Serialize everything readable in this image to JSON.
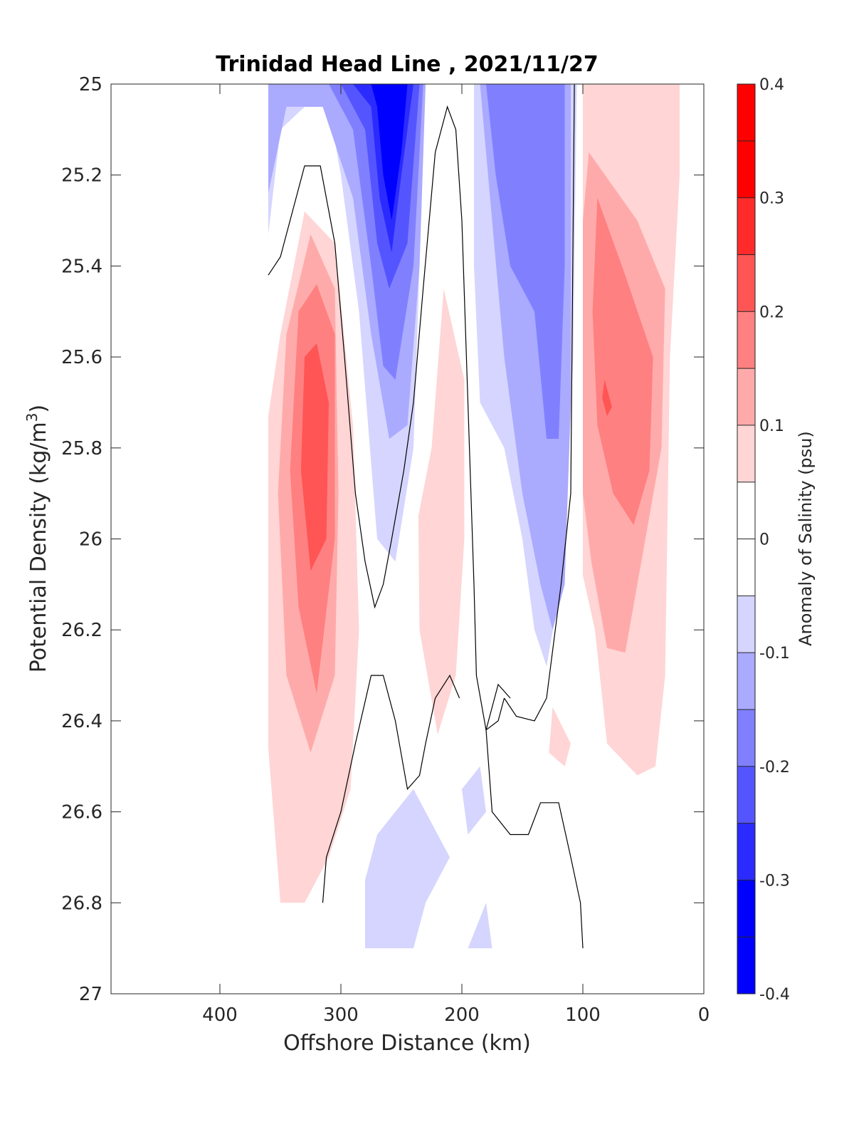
{
  "chart_data": {
    "type": "contour",
    "title": "Trinidad Head Line , 2021/11/27",
    "xlabel": "Offshore Distance (km)",
    "ylabel": "Potential Density (kg/m",
    "ylabel_sup": "3",
    "ylabel_end": ")",
    "xlim": [
      490,
      0
    ],
    "x_reversed": true,
    "ylim": [
      25,
      27
    ],
    "y_reversed": true,
    "x_ticks": [
      400,
      300,
      200,
      100,
      0
    ],
    "x_tick_labels": [
      "400",
      "300",
      "200",
      "100",
      "0"
    ],
    "y_ticks": [
      25,
      25.2,
      25.4,
      25.6,
      25.8,
      26,
      26.2,
      26.4,
      26.6,
      26.8,
      27
    ],
    "y_tick_labels": [
      "25",
      "25.2",
      "25.4",
      "25.6",
      "25.8",
      "26",
      "26.2",
      "26.4",
      "26.6",
      "26.8",
      "27"
    ],
    "colorbar": {
      "label": "Anomaly of Salinity (psu)",
      "range": [
        -0.4,
        0.4
      ],
      "levels": [
        -0.4,
        -0.35,
        -0.3,
        -0.25,
        -0.2,
        -0.15,
        -0.1,
        -0.05,
        0.05,
        0.1,
        0.15,
        0.2,
        0.25,
        0.3,
        0.35,
        0.4
      ],
      "tick_values": [
        -0.4,
        -0.3,
        -0.2,
        -0.1,
        0,
        0.1,
        0.2,
        0.3,
        0.4
      ],
      "tick_labels": [
        "-0.4",
        "-0.3",
        "-0.2",
        "-0.1",
        "0",
        "0.1",
        "0.2",
        "0.3",
        "0.4"
      ],
      "colors": [
        "#0000ff",
        "#2b2bff",
        "#5555ff",
        "#8080ff",
        "#aaaaff",
        "#d5d5ff",
        "#ffffff",
        "#ffd5d5",
        "#ffaaaa",
        "#ff8080",
        "#ff5555",
        "#ff2b2b",
        "#ff0000"
      ],
      "colors_note": "bands from -0.4 to 0.4; white band spans -0.05 to 0.05"
    },
    "regions": [
      {
        "band": 0.075,
        "points": [
          [
            360,
            25.73
          ],
          [
            350,
            25.55
          ],
          [
            330,
            25.28
          ],
          [
            305,
            25.35
          ],
          [
            290,
            25.75
          ],
          [
            285,
            26.2
          ],
          [
            292,
            26.55
          ],
          [
            310,
            26.7
          ],
          [
            330,
            26.8
          ],
          [
            350,
            26.8
          ],
          [
            360,
            26.46
          ]
        ]
      },
      {
        "band": 0.125,
        "points": [
          [
            345,
            25.55
          ],
          [
            325,
            25.33
          ],
          [
            305,
            25.45
          ],
          [
            302,
            25.9
          ],
          [
            305,
            26.3
          ],
          [
            325,
            26.47
          ],
          [
            345,
            26.3
          ],
          [
            352,
            25.9
          ]
        ]
      },
      {
        "band": 0.175,
        "points": [
          [
            335,
            25.5
          ],
          [
            320,
            25.44
          ],
          [
            305,
            25.55
          ],
          [
            305,
            26.0
          ],
          [
            320,
            26.34
          ],
          [
            335,
            26.15
          ],
          [
            342,
            25.85
          ]
        ]
      },
      {
        "band": 0.225,
        "points": [
          [
            330,
            25.6
          ],
          [
            320,
            25.57
          ],
          [
            310,
            25.7
          ],
          [
            312,
            26.0
          ],
          [
            325,
            26.07
          ],
          [
            333,
            25.85
          ]
        ]
      },
      {
        "band": 0.075,
        "points": [
          [
            100,
            25.0
          ],
          [
            20,
            25.0
          ],
          [
            20,
            25.2
          ],
          [
            28,
            25.6
          ],
          [
            32,
            26.3
          ],
          [
            40,
            26.5
          ],
          [
            55,
            26.52
          ],
          [
            80,
            26.45
          ],
          [
            90,
            26.2
          ],
          [
            100,
            26.08
          ]
        ]
      },
      {
        "band": 0.125,
        "points": [
          [
            95,
            25.15
          ],
          [
            55,
            25.3
          ],
          [
            32,
            25.45
          ],
          [
            35,
            25.8
          ],
          [
            55,
            26.1
          ],
          [
            65,
            26.25
          ],
          [
            80,
            26.24
          ],
          [
            93,
            26.05
          ],
          [
            100,
            25.9
          ],
          [
            100,
            25.3
          ]
        ]
      },
      {
        "band": 0.175,
        "points": [
          [
            88,
            25.25
          ],
          [
            65,
            25.42
          ],
          [
            42,
            25.6
          ],
          [
            45,
            25.85
          ],
          [
            58,
            25.97
          ],
          [
            75,
            25.9
          ],
          [
            88,
            25.75
          ],
          [
            92,
            25.5
          ]
        ]
      },
      {
        "band": 0.225,
        "points": [
          [
            82,
            25.65
          ],
          [
            76,
            25.71
          ],
          [
            80,
            25.73
          ],
          [
            84,
            25.69
          ]
        ]
      },
      {
        "band": 0.075,
        "points": [
          [
            215,
            25.45
          ],
          [
            198,
            25.65
          ],
          [
            198,
            26.0
          ],
          [
            205,
            26.3
          ],
          [
            220,
            26.43
          ],
          [
            235,
            26.2
          ],
          [
            236,
            25.95
          ],
          [
            225,
            25.8
          ]
        ]
      },
      {
        "band": 0.075,
        "points": [
          [
            125,
            26.37
          ],
          [
            110,
            26.45
          ],
          [
            115,
            26.5
          ],
          [
            128,
            26.47
          ]
        ]
      },
      {
        "band": -0.075,
        "points": [
          [
            360,
            25.0
          ],
          [
            230,
            25.0
          ],
          [
            240,
            25.8
          ],
          [
            255,
            26.05
          ],
          [
            270,
            26.0
          ],
          [
            285,
            25.5
          ],
          [
            300,
            25.2
          ],
          [
            310,
            25.05
          ],
          [
            330,
            25.05
          ],
          [
            350,
            25.1
          ],
          [
            360,
            25.33
          ]
        ]
      },
      {
        "band": -0.125,
        "points": [
          [
            360,
            25.0
          ],
          [
            230,
            25.0
          ],
          [
            235,
            25.4
          ],
          [
            245,
            25.75
          ],
          [
            260,
            25.78
          ],
          [
            275,
            25.55
          ],
          [
            290,
            25.25
          ],
          [
            315,
            25.05
          ],
          [
            345,
            25.05
          ],
          [
            360,
            25.24
          ]
        ]
      },
      {
        "band": -0.175,
        "points": [
          [
            355,
            25.0
          ],
          [
            232,
            25.0
          ],
          [
            240,
            25.4
          ],
          [
            255,
            25.65
          ],
          [
            265,
            25.62
          ],
          [
            275,
            25.4
          ],
          [
            290,
            25.1
          ],
          [
            310,
            25.0
          ]
        ]
      },
      {
        "band": -0.225,
        "points": [
          [
            300,
            25.0
          ],
          [
            235,
            25.0
          ],
          [
            245,
            25.35
          ],
          [
            260,
            25.45
          ],
          [
            270,
            25.35
          ],
          [
            280,
            25.1
          ]
        ]
      },
      {
        "band": -0.275,
        "points": [
          [
            290,
            25.0
          ],
          [
            240,
            25.0
          ],
          [
            250,
            25.2
          ],
          [
            258,
            25.37
          ],
          [
            268,
            25.25
          ],
          [
            275,
            25.05
          ]
        ]
      },
      {
        "band": -0.325,
        "points": [
          [
            275,
            25.0
          ],
          [
            245,
            25.0
          ],
          [
            250,
            25.15
          ],
          [
            258,
            25.3
          ],
          [
            265,
            25.2
          ],
          [
            270,
            25.05
          ]
        ]
      },
      {
        "band": -0.075,
        "points": [
          [
            190,
            25.0
          ],
          [
            105,
            25.0
          ],
          [
            108,
            25.6
          ],
          [
            115,
            26.05
          ],
          [
            130,
            26.28
          ],
          [
            140,
            26.2
          ],
          [
            150,
            26.0
          ],
          [
            165,
            25.8
          ],
          [
            185,
            25.7
          ],
          [
            190,
            25.4
          ]
        ]
      },
      {
        "band": -0.125,
        "points": [
          [
            185,
            25.0
          ],
          [
            110,
            25.0
          ],
          [
            110,
            25.7
          ],
          [
            115,
            26.1
          ],
          [
            125,
            26.2
          ],
          [
            135,
            26.1
          ],
          [
            150,
            25.9
          ],
          [
            165,
            25.6
          ],
          [
            175,
            25.3
          ]
        ]
      },
      {
        "band": -0.175,
        "points": [
          [
            180,
            25.0
          ],
          [
            115,
            25.0
          ],
          [
            115,
            25.4
          ],
          [
            120,
            25.78
          ],
          [
            130,
            25.78
          ],
          [
            140,
            25.5
          ],
          [
            160,
            25.4
          ],
          [
            172,
            25.2
          ]
        ]
      },
      {
        "band": -0.075,
        "points": [
          [
            270,
            26.65
          ],
          [
            240,
            26.55
          ],
          [
            210,
            26.7
          ],
          [
            230,
            26.8
          ],
          [
            240,
            26.9
          ],
          [
            280,
            26.9
          ],
          [
            280,
            26.75
          ]
        ]
      },
      {
        "band": -0.075,
        "points": [
          [
            200,
            26.55
          ],
          [
            185,
            26.5
          ],
          [
            180,
            26.6
          ],
          [
            195,
            26.65
          ]
        ]
      },
      {
        "band": -0.075,
        "points": [
          [
            180,
            26.8
          ],
          [
            195,
            26.9
          ],
          [
            175,
            26.9
          ]
        ]
      }
    ],
    "contour_lines": [
      {
        "level": 0,
        "points": [
          [
            360,
            25.42
          ],
          [
            350,
            25.38
          ],
          [
            330,
            25.18
          ],
          [
            317,
            25.18
          ],
          [
            305,
            25.35
          ],
          [
            297,
            25.6
          ],
          [
            288,
            25.9
          ],
          [
            280,
            26.05
          ],
          [
            272,
            26.15
          ],
          [
            265,
            26.1
          ],
          [
            258,
            26.0
          ],
          [
            248,
            25.85
          ],
          [
            240,
            25.7
          ],
          [
            232,
            25.45
          ],
          [
            222,
            25.15
          ],
          [
            212,
            25.05
          ],
          [
            205,
            25.1
          ],
          [
            200,
            25.3
          ],
          [
            195,
            25.7
          ],
          [
            190,
            26.1
          ],
          [
            188,
            26.3
          ],
          [
            180,
            26.42
          ],
          [
            170,
            26.4
          ],
          [
            165,
            26.35
          ]
        ]
      },
      {
        "level": 0,
        "points": [
          [
            165,
            26.35
          ],
          [
            155,
            26.39
          ],
          [
            140,
            26.4
          ],
          [
            130,
            26.35
          ],
          [
            118,
            26.1
          ],
          [
            110,
            25.9
          ],
          [
            107,
            25.0
          ]
        ]
      },
      {
        "level": 0,
        "points": [
          [
            315,
            26.8
          ],
          [
            312,
            26.7
          ],
          [
            300,
            26.6
          ],
          [
            288,
            26.45
          ],
          [
            275,
            26.3
          ],
          [
            265,
            26.3
          ],
          [
            255,
            26.4
          ],
          [
            245,
            26.55
          ],
          [
            235,
            26.52
          ],
          [
            230,
            26.45
          ],
          [
            222,
            26.35
          ],
          [
            210,
            26.3
          ],
          [
            202,
            26.35
          ]
        ]
      },
      {
        "level": 0,
        "points": [
          [
            160,
            26.35
          ],
          [
            170,
            26.32
          ],
          [
            180,
            26.42
          ],
          [
            175,
            26.6
          ],
          [
            160,
            26.65
          ],
          [
            145,
            26.65
          ],
          [
            135,
            26.58
          ],
          [
            120,
            26.58
          ],
          [
            110,
            26.7
          ],
          [
            102,
            26.8
          ],
          [
            100,
            26.9
          ]
        ]
      }
    ]
  }
}
